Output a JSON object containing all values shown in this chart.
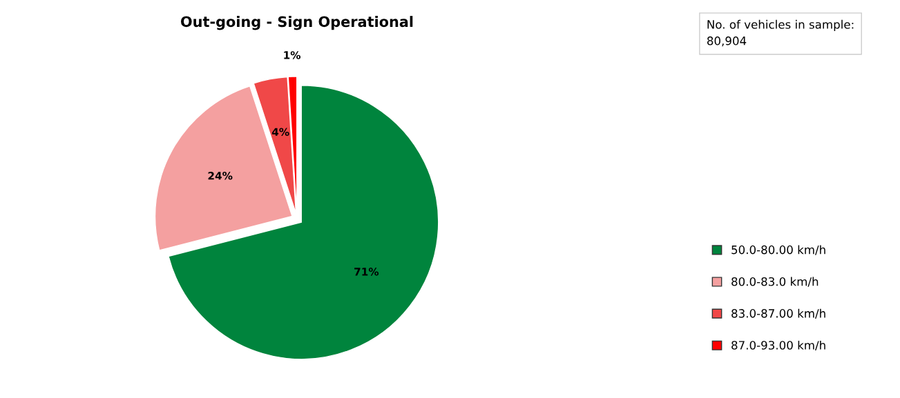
{
  "chart_data": {
    "type": "pie",
    "title": "Out-going - Sign Operational",
    "categories": [
      "50.0-80.00 km/h",
      "80.0-83.0 km/h",
      "83.0-87.00 km/h",
      "87.0-93.00 km/h"
    ],
    "values": [
      71,
      24,
      4,
      1
    ],
    "colors": [
      "#00843d",
      "#f4a0a0",
      "#f04848",
      "#ff0000"
    ],
    "value_labels": [
      "71%",
      "24%",
      "4%",
      "1%"
    ],
    "legend": "right",
    "annotations": [
      "No. of vehicles in sample:\n80,904"
    ]
  }
}
